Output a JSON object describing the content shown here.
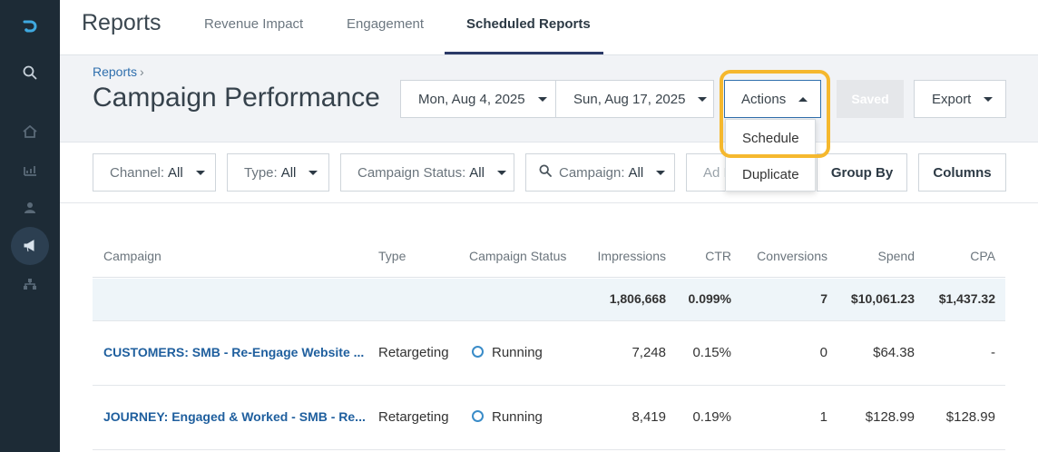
{
  "nav": {
    "app_title": "Reports",
    "tabs": [
      {
        "label": "Revenue Impact"
      },
      {
        "label": "Engagement"
      },
      {
        "label": "Scheduled Reports"
      }
    ]
  },
  "header": {
    "breadcrumb": "Reports",
    "title": "Campaign Performance",
    "start_date": "Mon, Aug 4, 2025",
    "end_date": "Sun, Aug 17, 2025",
    "actions_label": "Actions",
    "saved_label": "Saved",
    "export_label": "Export"
  },
  "actions_menu": {
    "items": [
      {
        "label": "Schedule"
      },
      {
        "label": "Duplicate"
      }
    ]
  },
  "filters": {
    "channel": {
      "label": "Channel:",
      "value": "All"
    },
    "type": {
      "label": "Type:",
      "value": "All"
    },
    "campaign_status": {
      "label": "Campaign Status:",
      "value": "All"
    },
    "campaign": {
      "label": "Campaign:",
      "value": "All"
    },
    "ad_partial": "Ad I",
    "group_by_label": "Group By",
    "columns_label": "Columns"
  },
  "table": {
    "headers": [
      "Campaign",
      "Type",
      "Campaign Status",
      "Impressions",
      "CTR",
      "Conversions",
      "Spend",
      "CPA"
    ],
    "totals": {
      "impressions": "1,806,668",
      "ctr": "0.099%",
      "conversions": "7",
      "spend": "$10,061.23",
      "cpa": "$1,437.32"
    },
    "rows": [
      {
        "campaign": "CUSTOMERS: SMB - Re-Engage Website ...",
        "type": "Retargeting",
        "status": "Running",
        "impressions": "7,248",
        "ctr": "0.15%",
        "conversions": "0",
        "spend": "$64.38",
        "cpa": "-"
      },
      {
        "campaign": "JOURNEY: Engaged & Worked - SMB - Re...",
        "type": "Retargeting",
        "status": "Running",
        "impressions": "8,419",
        "ctr": "0.19%",
        "conversions": "1",
        "spend": "$128.99",
        "cpa": "$128.99"
      }
    ]
  },
  "colors": {
    "sidebar": "#1d2b36",
    "accent": "#2f6fad",
    "highlight": "#f5b82e",
    "tab_underline": "#2b3a67"
  },
  "icons": [
    "logo-icon",
    "search-icon",
    "home-icon",
    "chart-icon",
    "users-icon",
    "megaphone-icon",
    "hierarchy-icon"
  ]
}
